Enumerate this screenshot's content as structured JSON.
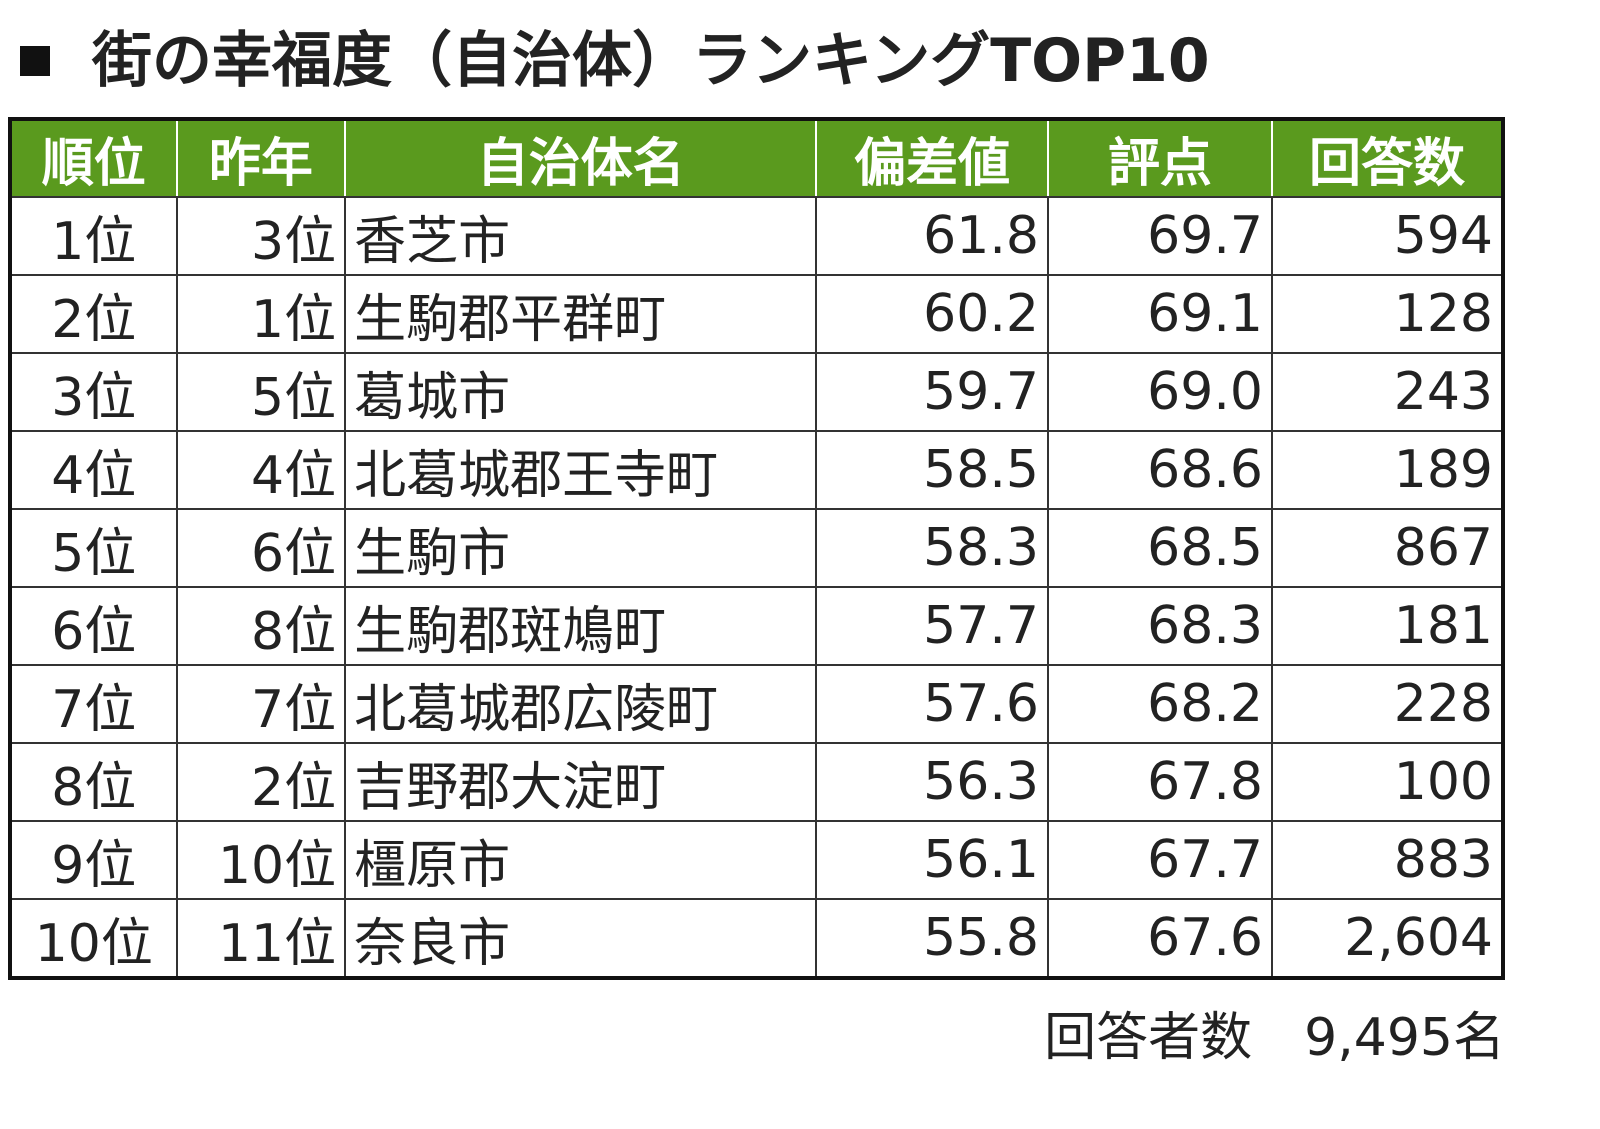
{
  "chart_data": {
    "type": "table",
    "title": "街の幸福度（自治体）ランキングTOP10",
    "header_color": "#5a9a1e",
    "columns": [
      "順位",
      "昨年",
      "自治体名",
      "偏差値",
      "評点",
      "回答数"
    ],
    "rows": [
      [
        "1位",
        "3位",
        "香芝市",
        "61.8",
        "69.7",
        "594"
      ],
      [
        "2位",
        "1位",
        "生駒郡平群町",
        "60.2",
        "69.1",
        "128"
      ],
      [
        "3位",
        "5位",
        "葛城市",
        "59.7",
        "69.0",
        "243"
      ],
      [
        "4位",
        "4位",
        "北葛城郡王寺町",
        "58.5",
        "68.6",
        "189"
      ],
      [
        "5位",
        "6位",
        "生駒市",
        "58.3",
        "68.5",
        "867"
      ],
      [
        "6位",
        "8位",
        "生駒郡斑鳩町",
        "57.7",
        "68.3",
        "181"
      ],
      [
        "7位",
        "7位",
        "北葛城郡広陵町",
        "57.6",
        "68.2",
        "228"
      ],
      [
        "8位",
        "2位",
        "吉野郡大淀町",
        "56.3",
        "67.8",
        "100"
      ],
      [
        "9位",
        "10位",
        "橿原市",
        "56.1",
        "67.7",
        "883"
      ],
      [
        "10位",
        "11位",
        "奈良市",
        "55.8",
        "67.6",
        "2,604"
      ]
    ],
    "footer": "回答者数　9,495名"
  }
}
